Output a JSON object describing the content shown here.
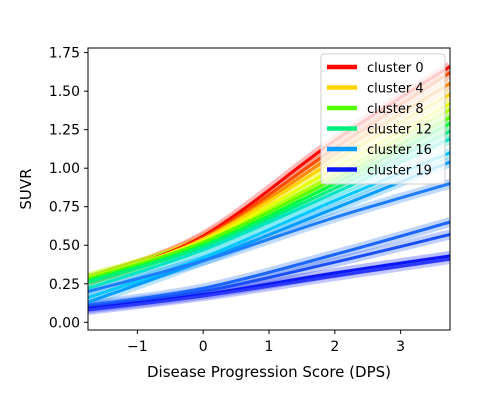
{
  "chart_data": {
    "type": "line",
    "xlabel": "Disease Progression Score (DPS)",
    "ylabel": "SUVR",
    "xlim": [
      -1.75,
      3.75
    ],
    "ylim": [
      -0.05,
      1.78
    ],
    "xticks": [
      -1,
      0,
      1,
      2,
      3
    ],
    "yticks": [
      0.0,
      0.25,
      0.5,
      0.75,
      1.0,
      1.25,
      1.5,
      1.75
    ],
    "grid": false,
    "legend": "top-right",
    "legend_entries": [
      {
        "label": "cluster 0",
        "color": "#ff0000"
      },
      {
        "label": "cluster 4",
        "color": "#ffd400"
      },
      {
        "label": "cluster 8",
        "color": "#55ff00"
      },
      {
        "label": "cluster 12",
        "color": "#00ef7c"
      },
      {
        "label": "cluster 16",
        "color": "#009cff"
      },
      {
        "label": "cluster 19",
        "color": "#0a16f5"
      }
    ],
    "series": [
      {
        "name": "cluster 0",
        "color": "#ff0000",
        "x": [
          -1.75,
          0,
          2,
          3.75
        ],
        "y": [
          0.27,
          0.56,
          1.18,
          1.66
        ]
      },
      {
        "color": "#ff4a00",
        "x": [
          -1.75,
          0,
          2,
          3.75
        ],
        "y": [
          0.27,
          0.55,
          1.13,
          1.62
        ]
      },
      {
        "color": "#ff8c00",
        "x": [
          -1.75,
          0,
          2,
          3.75
        ],
        "y": [
          0.27,
          0.54,
          1.09,
          1.55
        ]
      },
      {
        "name": "cluster 4",
        "color": "#ffd400",
        "x": [
          -1.75,
          0,
          2,
          3.75
        ],
        "y": [
          0.28,
          0.54,
          1.05,
          1.48
        ]
      },
      {
        "color": "#e8ff00",
        "x": [
          -1.75,
          0,
          2,
          3.75
        ],
        "y": [
          0.29,
          0.53,
          1.0,
          1.42
        ]
      },
      {
        "color": "#b0ff00",
        "x": [
          -1.75,
          0,
          2,
          3.75
        ],
        "y": [
          0.29,
          0.52,
          0.96,
          1.38
        ]
      },
      {
        "name": "cluster 8",
        "color": "#55ff00",
        "x": [
          -1.75,
          0,
          2,
          3.75
        ],
        "y": [
          0.28,
          0.52,
          0.93,
          1.33
        ]
      },
      {
        "color": "#00ff3a",
        "x": [
          -1.75,
          0,
          2,
          3.75
        ],
        "y": [
          0.27,
          0.5,
          0.9,
          1.29
        ]
      },
      {
        "name": "cluster 12",
        "color": "#00ef7c",
        "x": [
          -1.75,
          0,
          2,
          3.75
        ],
        "y": [
          0.26,
          0.49,
          0.87,
          1.24
        ]
      },
      {
        "color": "#00e4c4",
        "x": [
          -1.75,
          0,
          2,
          3.75
        ],
        "y": [
          0.22,
          0.47,
          0.84,
          1.19
        ]
      },
      {
        "color": "#00c8ff",
        "x": [
          -1.75,
          0,
          2,
          3.75
        ],
        "y": [
          0.16,
          0.42,
          0.79,
          1.1
        ]
      },
      {
        "name": "cluster 16",
        "color": "#009cff",
        "x": [
          -1.75,
          0,
          2,
          3.75
        ],
        "y": [
          0.13,
          0.4,
          0.74,
          1.04
        ]
      },
      {
        "color": "#1e7cff",
        "x": [
          -1.75,
          0,
          2,
          3.75
        ],
        "y": [
          0.2,
          0.4,
          0.68,
          0.9
        ]
      },
      {
        "color": "#1a66ff",
        "x": [
          -1.75,
          0,
          2,
          3.75
        ],
        "y": [
          0.11,
          0.22,
          0.44,
          0.65
        ]
      },
      {
        "color": "#1a4ff8",
        "x": [
          -1.75,
          0,
          2,
          3.75
        ],
        "y": [
          0.1,
          0.2,
          0.39,
          0.57
        ]
      },
      {
        "name": "cluster 19",
        "color": "#0a16f5",
        "x": [
          -1.75,
          0,
          2,
          3.75
        ],
        "y": [
          0.09,
          0.18,
          0.32,
          0.43
        ]
      },
      {
        "color": "#2a38ff",
        "x": [
          -1.75,
          0,
          2,
          3.75
        ],
        "y": [
          0.08,
          0.17,
          0.3,
          0.41
        ]
      }
    ]
  }
}
